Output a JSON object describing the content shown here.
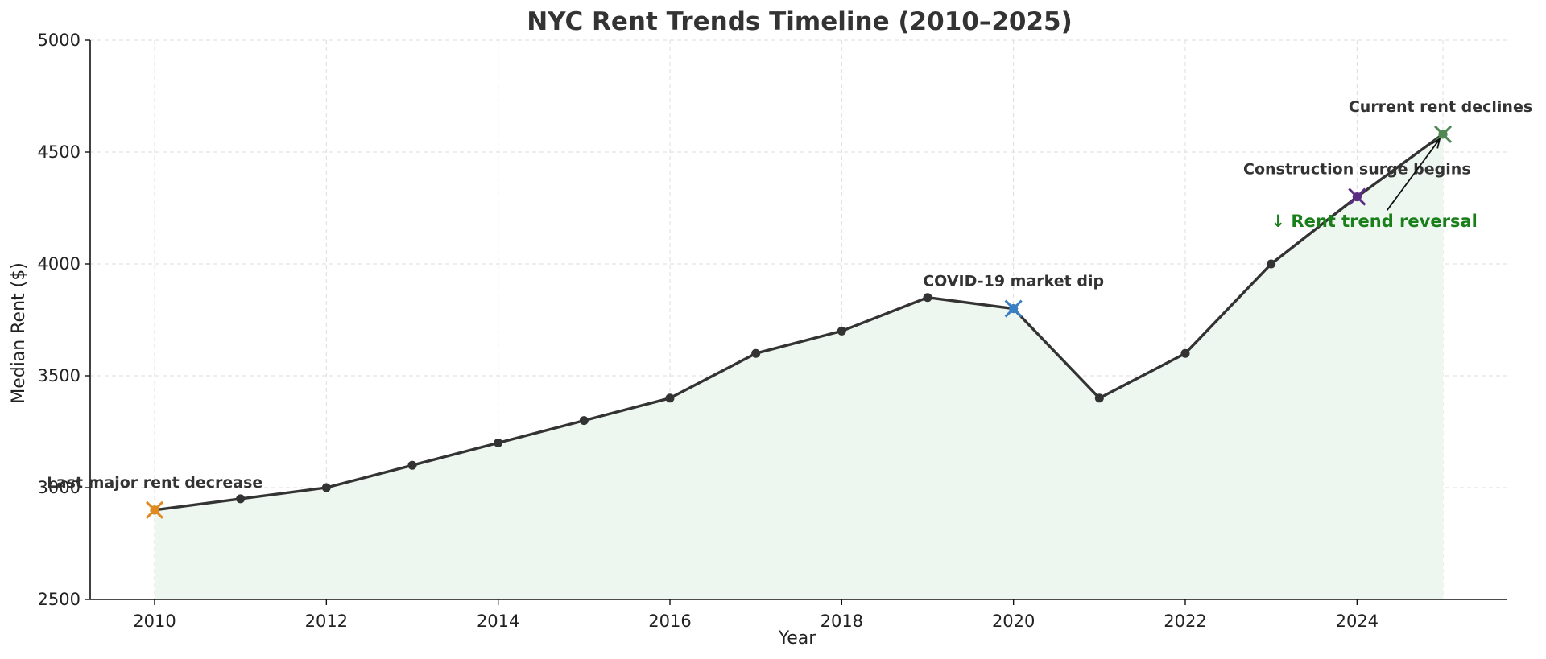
{
  "chart_data": {
    "type": "line",
    "title": "NYC Rent Trends Timeline (2010–2025)",
    "xlabel": "Year",
    "ylabel": "Median Rent ($)",
    "xlim": [
      2009.25,
      2025.75
    ],
    "ylim": [
      2500,
      5000
    ],
    "xticks": [
      2010,
      2012,
      2014,
      2016,
      2018,
      2020,
      2022,
      2024
    ],
    "yticks": [
      2500,
      3000,
      3500,
      4000,
      4500,
      5000
    ],
    "grid": true,
    "series": [
      {
        "x": [
          2010,
          2011,
          2012,
          2013,
          2014,
          2015,
          2016,
          2017,
          2018,
          2019,
          2020,
          2021,
          2022,
          2023,
          2024,
          2025
        ],
        "y": [
          2900,
          2950,
          3000,
          3100,
          3200,
          3300,
          3400,
          3600,
          3700,
          3850,
          3800,
          3400,
          3600,
          4000,
          4300,
          4580
        ],
        "color": "#333333",
        "fill_color": "#eef6f0"
      }
    ],
    "annotations": [
      {
        "x": 2010,
        "y": 2900,
        "text": "Last major rent decrease",
        "color": "#e08a1e"
      },
      {
        "x": 2020,
        "y": 3800,
        "text": "COVID-19 market dip",
        "color": "#3a7fc4"
      },
      {
        "x": 2024,
        "y": 4300,
        "text": "Construction surge begins",
        "color": "#5a2d82"
      },
      {
        "x": 2025,
        "y": 4580,
        "text": "Current rent declines",
        "color": "#4f8a55"
      }
    ],
    "callout": {
      "text": "↓ Rent trend reversal",
      "color": "#1a7f1a",
      "x": 2024.2,
      "y": 4195,
      "points_to": {
        "x": 2025,
        "y": 4580
      }
    }
  }
}
